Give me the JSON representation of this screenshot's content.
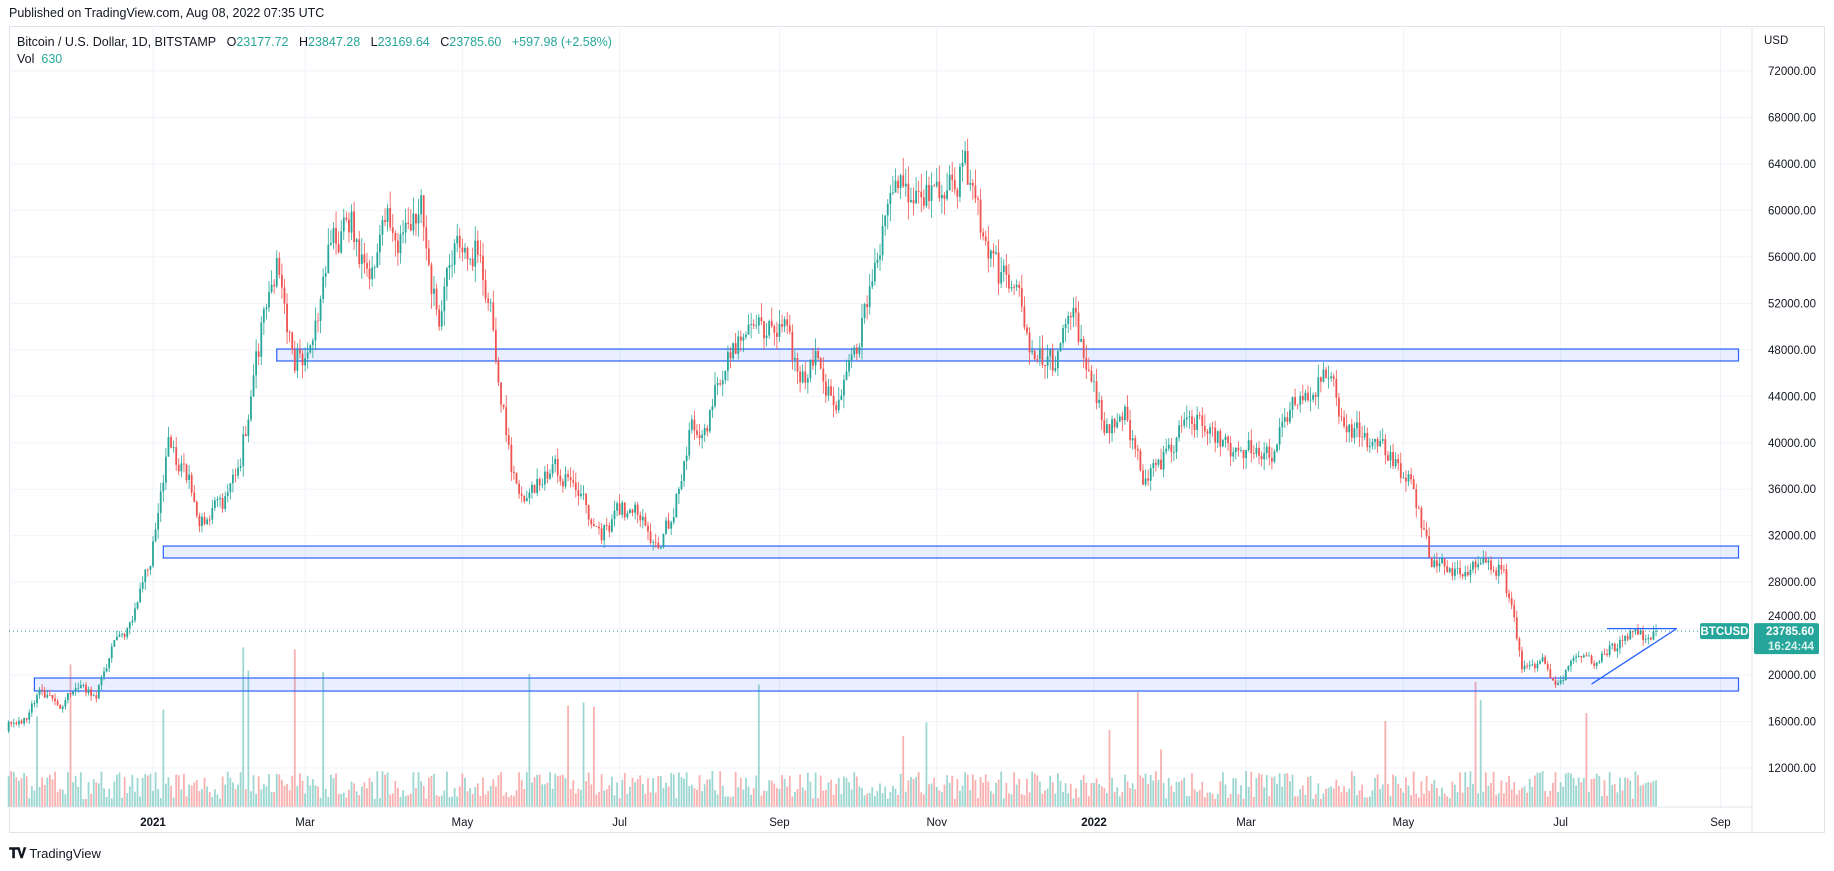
{
  "published": "Published on TradingView.com, Aug 08, 2022 07:35 UTC",
  "legend": {
    "symbol": "Bitcoin / U.S. Dollar, 1D, BITSTAMP",
    "open_label": "O",
    "open": "23177.72",
    "high_label": "H",
    "high": "23847.28",
    "low_label": "L",
    "low": "23169.64",
    "close_label": "C",
    "close": "23785.60",
    "change": "+597.98 (+2.58%)",
    "vol_label": "Vol",
    "vol": "630"
  },
  "price_badge": {
    "symbol": "BTCUSD",
    "price": "23785.60",
    "countdown": "16:24:44"
  },
  "logo": "TradingView",
  "colors": {
    "up": "#26a69a",
    "down": "#ef5350",
    "zone": "#2962ff",
    "grid": "#f0f3fa"
  },
  "chart_data": {
    "type": "candlestick",
    "symbol": "BTCUSD",
    "currency_label": "USD",
    "ylim": [
      8000,
      74000
    ],
    "y_ticks": [
      12000,
      16000,
      20000,
      24000,
      28000,
      32000,
      36000,
      40000,
      44000,
      48000,
      52000,
      56000,
      60000,
      64000,
      68000,
      72000
    ],
    "y_tick_labels": [
      "12000.00",
      "16000.00",
      "20000.00",
      "24000.00",
      "28000.00",
      "32000.00",
      "36000.00",
      "40000.00",
      "44000.00",
      "48000.00",
      "52000.00",
      "56000.00",
      "60000.00",
      "64000.00",
      "68000.00",
      "72000.00"
    ],
    "x_range": [
      "2020-11-06",
      "2022-09-18"
    ],
    "x_ticks": [
      {
        "date": "2021-01-01",
        "label": "2021",
        "bold": true
      },
      {
        "date": "2021-03-01",
        "label": "Mar"
      },
      {
        "date": "2021-05-01",
        "label": "May"
      },
      {
        "date": "2021-07-01",
        "label": "Jul"
      },
      {
        "date": "2021-09-01",
        "label": "Sep"
      },
      {
        "date": "2021-11-01",
        "label": "Nov"
      },
      {
        "date": "2022-01-01",
        "label": "2022",
        "bold": true
      },
      {
        "date": "2022-03-01",
        "label": "Mar"
      },
      {
        "date": "2022-05-01",
        "label": "May"
      },
      {
        "date": "2022-07-01",
        "label": "Jul"
      },
      {
        "date": "2022-09-01",
        "label": "Sep"
      }
    ],
    "weekly_closes": [
      [
        "2020-11-06",
        15500
      ],
      [
        "2020-11-13",
        16300
      ],
      [
        "2020-11-20",
        18700
      ],
      [
        "2020-11-27",
        17100
      ],
      [
        "2020-12-04",
        18900
      ],
      [
        "2020-12-11",
        18000
      ],
      [
        "2020-12-18",
        23000
      ],
      [
        "2020-12-25",
        24700
      ],
      [
        "2021-01-01",
        29400
      ],
      [
        "2021-01-08",
        40500
      ],
      [
        "2021-01-15",
        36800
      ],
      [
        "2021-01-22",
        33000
      ],
      [
        "2021-01-29",
        34300
      ],
      [
        "2021-02-05",
        38000
      ],
      [
        "2021-02-12",
        47400
      ],
      [
        "2021-02-19",
        55900
      ],
      [
        "2021-02-26",
        46200
      ],
      [
        "2021-03-05",
        48800
      ],
      [
        "2021-03-12",
        57200
      ],
      [
        "2021-03-19",
        58100
      ],
      [
        "2021-03-26",
        55000
      ],
      [
        "2021-04-02",
        59000
      ],
      [
        "2021-04-09",
        58100
      ],
      [
        "2021-04-16",
        61300
      ],
      [
        "2021-04-23",
        50000
      ],
      [
        "2021-04-30",
        57800
      ],
      [
        "2021-05-07",
        57400
      ],
      [
        "2021-05-14",
        49700
      ],
      [
        "2021-05-21",
        37500
      ],
      [
        "2021-05-28",
        35700
      ],
      [
        "2021-06-04",
        36900
      ],
      [
        "2021-06-11",
        37300
      ],
      [
        "2021-06-18",
        35600
      ],
      [
        "2021-06-25",
        31600
      ],
      [
        "2021-07-02",
        33800
      ],
      [
        "2021-07-09",
        33800
      ],
      [
        "2021-07-16",
        31400
      ],
      [
        "2021-07-23",
        33600
      ],
      [
        "2021-07-30",
        42000
      ],
      [
        "2021-08-06",
        42800
      ],
      [
        "2021-08-13",
        47800
      ],
      [
        "2021-08-20",
        49300
      ],
      [
        "2021-08-27",
        49000
      ],
      [
        "2021-09-03",
        50000
      ],
      [
        "2021-09-10",
        45200
      ],
      [
        "2021-09-17",
        47300
      ],
      [
        "2021-09-24",
        42800
      ],
      [
        "2021-10-01",
        48200
      ],
      [
        "2021-10-08",
        53900
      ],
      [
        "2021-10-15",
        61500
      ],
      [
        "2021-10-22",
        60700
      ],
      [
        "2021-10-29",
        62200
      ],
      [
        "2021-11-05",
        61000
      ],
      [
        "2021-11-12",
        64100
      ],
      [
        "2021-11-19",
        58100
      ],
      [
        "2021-11-26",
        53700
      ],
      [
        "2021-12-03",
        53600
      ],
      [
        "2021-12-10",
        47200
      ],
      [
        "2021-12-17",
        46200
      ],
      [
        "2021-12-24",
        50800
      ],
      [
        "2021-12-31",
        46200
      ],
      [
        "2022-01-07",
        41600
      ],
      [
        "2022-01-14",
        43100
      ],
      [
        "2022-01-21",
        36400
      ],
      [
        "2022-01-28",
        37700
      ],
      [
        "2022-02-04",
        41500
      ],
      [
        "2022-02-11",
        42400
      ],
      [
        "2022-02-18",
        40000
      ],
      [
        "2022-02-25",
        39200
      ],
      [
        "2022-03-04",
        39100
      ],
      [
        "2022-03-11",
        38700
      ],
      [
        "2022-03-18",
        41800
      ],
      [
        "2022-03-25",
        44300
      ],
      [
        "2022-04-01",
        46300
      ],
      [
        "2022-04-08",
        42200
      ],
      [
        "2022-04-15",
        40500
      ],
      [
        "2022-04-22",
        39700
      ],
      [
        "2022-04-29",
        38600
      ],
      [
        "2022-05-06",
        36000
      ],
      [
        "2022-05-13",
        29300
      ],
      [
        "2022-05-20",
        29200
      ],
      [
        "2022-05-27",
        28600
      ],
      [
        "2022-06-03",
        29700
      ],
      [
        "2022-06-10",
        29100
      ],
      [
        "2022-06-17",
        20500
      ],
      [
        "2022-06-24",
        21200
      ],
      [
        "2022-07-01",
        19300
      ],
      [
        "2022-07-08",
        21600
      ],
      [
        "2022-07-15",
        20800
      ],
      [
        "2022-07-22",
        22700
      ],
      [
        "2022-07-29",
        23800
      ],
      [
        "2022-08-05",
        23200
      ],
      [
        "2022-08-08",
        23785.6
      ]
    ],
    "last_price": 23785.6,
    "zones": [
      {
        "from": "2021-02-18",
        "to": "2022-09-08",
        "low": 47040,
        "high": 48070
      },
      {
        "from": "2021-01-05",
        "to": "2022-09-08",
        "low": 30080,
        "high": 31110
      },
      {
        "from": "2020-11-16",
        "to": "2022-09-08",
        "low": 18630,
        "high": 19750
      }
    ],
    "trendlines": [
      {
        "from": [
          "2022-07-13",
          19230
        ],
        "to": [
          "2022-08-15",
          24000
        ]
      },
      {
        "from": [
          "2022-07-19",
          24000
        ],
        "to": [
          "2022-08-15",
          24000
        ]
      }
    ]
  }
}
